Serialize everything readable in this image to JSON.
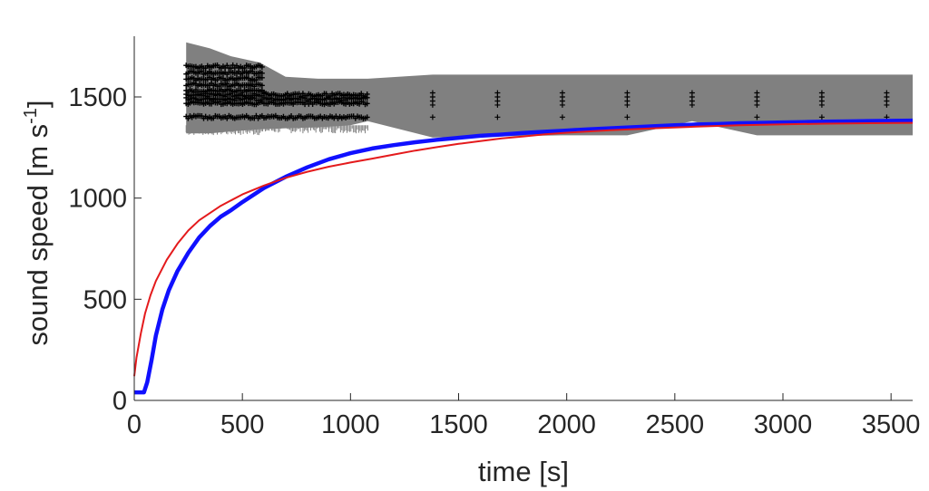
{
  "chart_data": {
    "type": "line",
    "xlabel": "time [s]",
    "ylabel": "sound speed [m s",
    "ylabel_superscript": "-1",
    "ylabel_close": "]",
    "xlim": [
      0,
      3600
    ],
    "ylim": [
      0,
      1800
    ],
    "x_ticks": [
      0,
      500,
      1000,
      1500,
      2000,
      2500,
      3000,
      3500
    ],
    "x_tick_labels": [
      "0",
      "500",
      "1000",
      "1500",
      "2000",
      "2500",
      "3000",
      "3500"
    ],
    "y_ticks": [
      0,
      500,
      1000,
      1500
    ],
    "y_tick_labels": [
      "0",
      "500",
      "1000",
      "1500"
    ],
    "grid": false,
    "legend": "none",
    "colors": {
      "measured": "#1010ff",
      "model": "#e41a1c",
      "uncertainty_band": "#808080",
      "samples": "#000000",
      "axis": "#262626"
    },
    "series": [
      {
        "kind": "line",
        "color": "#1010ff",
        "x": [
          0,
          20,
          45,
          60,
          80,
          100,
          130,
          160,
          200,
          250,
          300,
          350,
          400,
          450,
          500,
          600,
          700,
          800,
          900,
          1000,
          1100,
          1200,
          1300,
          1400,
          1500,
          1600,
          1700,
          1800,
          1900,
          2000,
          2100,
          2200,
          2300,
          2400,
          2500,
          2600,
          2700,
          2800,
          2900,
          3000,
          3100,
          3200,
          3300,
          3400,
          3500,
          3600
        ],
        "y": [
          40,
          40,
          40,
          90,
          200,
          320,
          450,
          545,
          640,
          730,
          805,
          862,
          908,
          942,
          980,
          1050,
          1105,
          1152,
          1192,
          1222,
          1245,
          1262,
          1276,
          1288,
          1298,
          1308,
          1314,
          1322,
          1328,
          1334,
          1340,
          1345,
          1350,
          1355,
          1360,
          1364,
          1366,
          1370,
          1372,
          1374,
          1376,
          1378,
          1379,
          1381,
          1382,
          1383
        ]
      },
      {
        "kind": "line",
        "color": "#e41a1c",
        "x": [
          0,
          10,
          30,
          50,
          75,
          100,
          150,
          200,
          250,
          300,
          400,
          500,
          600,
          700,
          800,
          900,
          1000,
          1100,
          1200,
          1300,
          1400,
          1500,
          1600,
          1700,
          1800,
          1900,
          2000,
          2200,
          2400,
          2600,
          2800,
          3000,
          3200,
          3400,
          3600
        ],
        "y": [
          120,
          210,
          330,
          430,
          520,
          590,
          695,
          775,
          840,
          890,
          962,
          1018,
          1062,
          1100,
          1130,
          1155,
          1176,
          1195,
          1215,
          1235,
          1252,
          1268,
          1282,
          1295,
          1305,
          1315,
          1323,
          1335,
          1345,
          1353,
          1360,
          1365,
          1368,
          1370,
          1372
        ]
      },
      {
        "kind": "band",
        "color": "#808080",
        "x": [
          240,
          350,
          450,
          580,
          700,
          850,
          1000,
          1080,
          1380,
          1680,
          1980,
          2280,
          2580,
          2880,
          3180,
          3480,
          3600
        ],
        "lower": [
          1320,
          1320,
          1330,
          1340,
          1345,
          1350,
          1360,
          1380,
          1300,
          1305,
          1310,
          1310,
          1380,
          1310,
          1310,
          1310,
          1310
        ],
        "upper": [
          1770,
          1740,
          1700,
          1670,
          1600,
          1590,
          1590,
          1590,
          1610,
          1610,
          1610,
          1610,
          1610,
          1610,
          1610,
          1610,
          1610
        ]
      },
      {
        "kind": "markers",
        "color": "#000000",
        "marker": "+",
        "x": [
          1380,
          1680,
          1980,
          2280,
          2580,
          2880,
          3180,
          3480
        ],
        "y_groups": [
          [
            1400,
            1460,
            1480,
            1500,
            1520
          ],
          [
            1400,
            1460,
            1480,
            1500,
            1520
          ],
          [
            1400,
            1460,
            1480,
            1500,
            1520
          ],
          [
            1400,
            1460,
            1480,
            1500,
            1520
          ],
          [
            1460,
            1480,
            1500,
            1520
          ],
          [
            1400,
            1460,
            1480,
            1500,
            1520
          ],
          [
            1400,
            1460,
            1480,
            1500,
            1520
          ],
          [
            1400,
            1460,
            1480,
            1500,
            1520
          ]
        ]
      }
    ]
  }
}
